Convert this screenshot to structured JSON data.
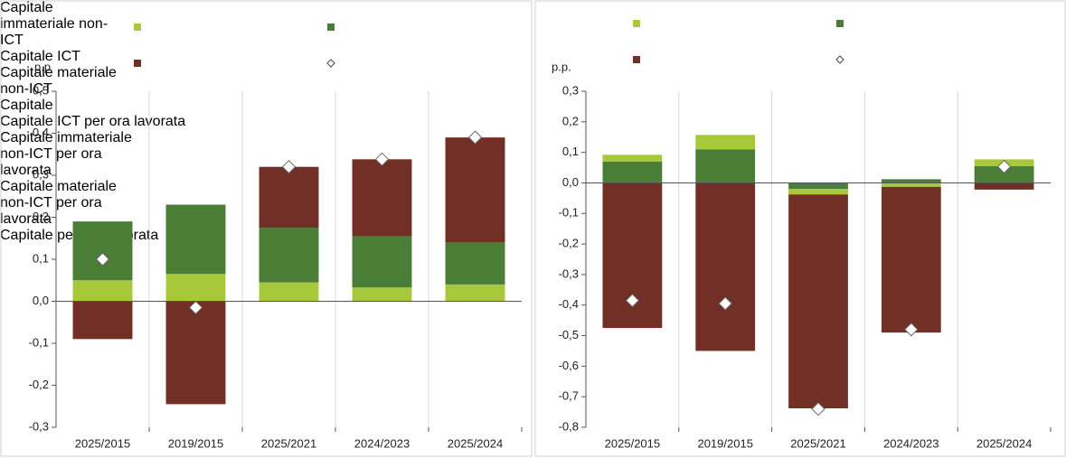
{
  "chart_data": [
    {
      "type": "bar",
      "ylabel": "p.p",
      "categories": [
        "2025/2015",
        "2019/2015",
        "2025/2021",
        "2024/2023",
        "2025/2024"
      ],
      "ylim": [
        -0.3,
        0.5
      ],
      "yticks": [
        {
          "value": -0.3,
          "label": "-0,3"
        },
        {
          "value": -0.2,
          "label": "-0,2"
        },
        {
          "value": -0.1,
          "label": "-0,1"
        },
        {
          "value": 0,
          "label": "0,0"
        },
        {
          "value": 0.1,
          "label": "0,1"
        },
        {
          "value": 0.2,
          "label": "0,2"
        },
        {
          "value": 0.3,
          "label": "0,3"
        },
        {
          "value": 0.4,
          "label": "0,4"
        },
        {
          "value": 0.5,
          "label": "0,5"
        }
      ],
      "series": [
        {
          "name": "Capitale immateriale non-ICT",
          "color": "#a8c83c",
          "values": [
            0.05,
            0.065,
            0.045,
            0.033,
            0.04
          ]
        },
        {
          "name": "Capitale ICT",
          "color": "#4a7d36",
          "values": [
            0.14,
            0.165,
            0.13,
            0.122,
            0.1
          ]
        },
        {
          "name": "Capitale materiale non-ICT",
          "color": "#722f25",
          "values": [
            -0.09,
            -0.245,
            0.145,
            0.183,
            0.25
          ]
        },
        {
          "name": "Capitale",
          "mark": "diamond",
          "color": "#ffffff",
          "values": [
            0.1,
            -0.015,
            0.32,
            0.338,
            0.39
          ]
        }
      ]
    },
    {
      "type": "bar",
      "ylabel": "p.p.",
      "categories": [
        "2025/2015",
        "2019/2015",
        "2025/2021",
        "2024/2023",
        "2025/2024"
      ],
      "ylim": [
        -0.8,
        0.3
      ],
      "yticks": [
        {
          "value": -0.8,
          "label": "-0,8"
        },
        {
          "value": -0.7,
          "label": "-0,7"
        },
        {
          "value": -0.6,
          "label": "-0,6"
        },
        {
          "value": -0.5,
          "label": "-0,5"
        },
        {
          "value": -0.4,
          "label": "-0,4"
        },
        {
          "value": -0.3,
          "label": "-0,3"
        },
        {
          "value": -0.2,
          "label": "-0,2"
        },
        {
          "value": -0.1,
          "label": "-0,1"
        },
        {
          "value": 0,
          "label": "0,0"
        },
        {
          "value": 0.1,
          "label": "0,1"
        },
        {
          "value": 0.2,
          "label": "0,2"
        },
        {
          "value": 0.3,
          "label": "0,3"
        }
      ],
      "series": [
        {
          "name": "Capitale ICT per ora lavorata",
          "color": "#4a7d36",
          "values": [
            0.07,
            0.11,
            -0.02,
            0.012,
            0.055
          ]
        },
        {
          "name": "Capitale immateriale non-ICT per ora lavorata",
          "color": "#a8c83c",
          "values": [
            0.022,
            0.047,
            -0.018,
            -0.013,
            0.022
          ]
        },
        {
          "name": "Capitale materiale non-ICT per ora lavorata",
          "color": "#722f25",
          "values": [
            -0.475,
            -0.55,
            -0.7,
            -0.477,
            -0.022
          ]
        },
        {
          "name": "Capitale per ora lavorata",
          "mark": "diamond",
          "color": "#ffffff",
          "values": [
            -0.385,
            -0.395,
            -0.74,
            -0.48,
            0.053
          ]
        }
      ]
    }
  ]
}
